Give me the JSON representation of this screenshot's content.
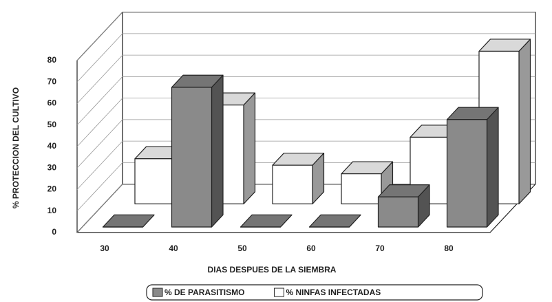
{
  "chart_data": {
    "type": "bar3d",
    "xlabel": "DIAS DESPUES DE LA SIEMBRA",
    "ylabel": "% PROTECCION DEL CULTIVO",
    "categories": [
      "30",
      "40",
      "50",
      "60",
      "70",
      "80"
    ],
    "series": [
      {
        "name": "% DE PARASITISMO",
        "color": "#8a8a8a",
        "values": [
          0,
          65,
          0,
          0,
          14,
          50
        ]
      },
      {
        "name": "% NINFAS INFECTADAS",
        "color": "#ffffff",
        "values": [
          21,
          46,
          18,
          14,
          31,
          71
        ]
      }
    ],
    "ylim": [
      0,
      80
    ],
    "yticks": [
      0,
      10,
      20,
      30,
      40,
      50,
      60,
      70,
      80
    ],
    "grid": true
  }
}
